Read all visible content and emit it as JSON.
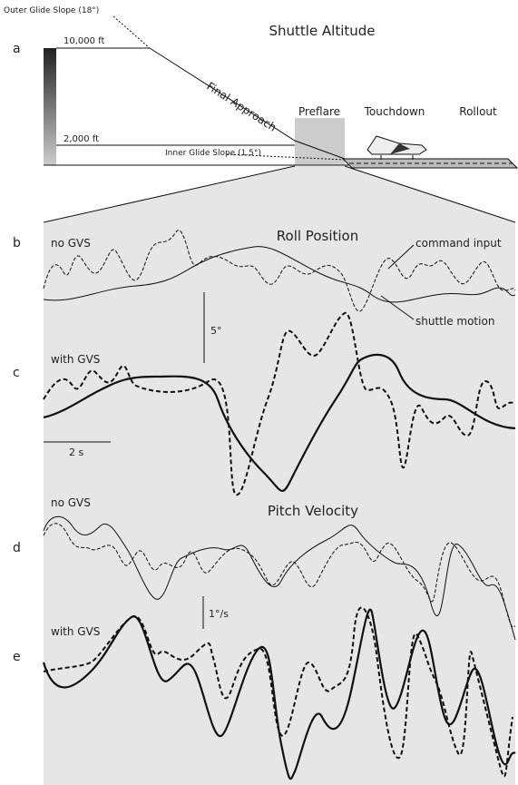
{
  "panel_a": {
    "letter": "a",
    "title": "Shuttle Altitude",
    "outer_glide_slope": "Outer Glide Slope (18°)",
    "inner_glide_slope": "Inner Glide Slope (1.5°)",
    "altitude_high": "10,000 ft",
    "altitude_low": "2,000 ft",
    "final_approach": "Final Approach",
    "phases": [
      "Preflare",
      "Touchdown",
      "Rollout"
    ]
  },
  "panel_b": {
    "letter": "b",
    "condition": "no GVS",
    "title": "Roll Position",
    "legend": [
      "command input",
      "shuttle motion"
    ],
    "scale": "5°"
  },
  "panel_c": {
    "letter": "c",
    "condition": "with GVS",
    "time_scale": "2 s"
  },
  "panel_d": {
    "letter": "d",
    "condition": "no GVS",
    "title": "Pitch Velocity",
    "scale": "1°/s"
  },
  "panel_e": {
    "letter": "e",
    "condition": "with GVS"
  }
}
